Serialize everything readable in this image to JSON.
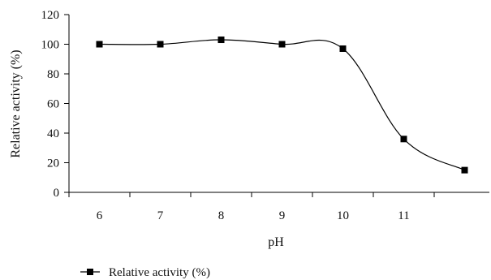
{
  "chart_data": {
    "type": "line",
    "title": "",
    "xlabel": "pH",
    "ylabel": "Relative activity (%)",
    "ylim": [
      0,
      120
    ],
    "yticks": [
      "0",
      "20",
      "40",
      "60",
      "80",
      "100",
      "120"
    ],
    "xticks": [
      "6",
      "7",
      "8",
      "9",
      "10",
      "11"
    ],
    "grid": false,
    "legend_position": "bottom-left",
    "series": [
      {
        "name": "Relative activity (%)",
        "color": "#000000",
        "marker": "square",
        "x": [
          6,
          7,
          8,
          9,
          10,
          11,
          12
        ],
        "y": [
          100,
          100,
          103,
          100,
          97,
          36,
          15
        ]
      }
    ]
  }
}
